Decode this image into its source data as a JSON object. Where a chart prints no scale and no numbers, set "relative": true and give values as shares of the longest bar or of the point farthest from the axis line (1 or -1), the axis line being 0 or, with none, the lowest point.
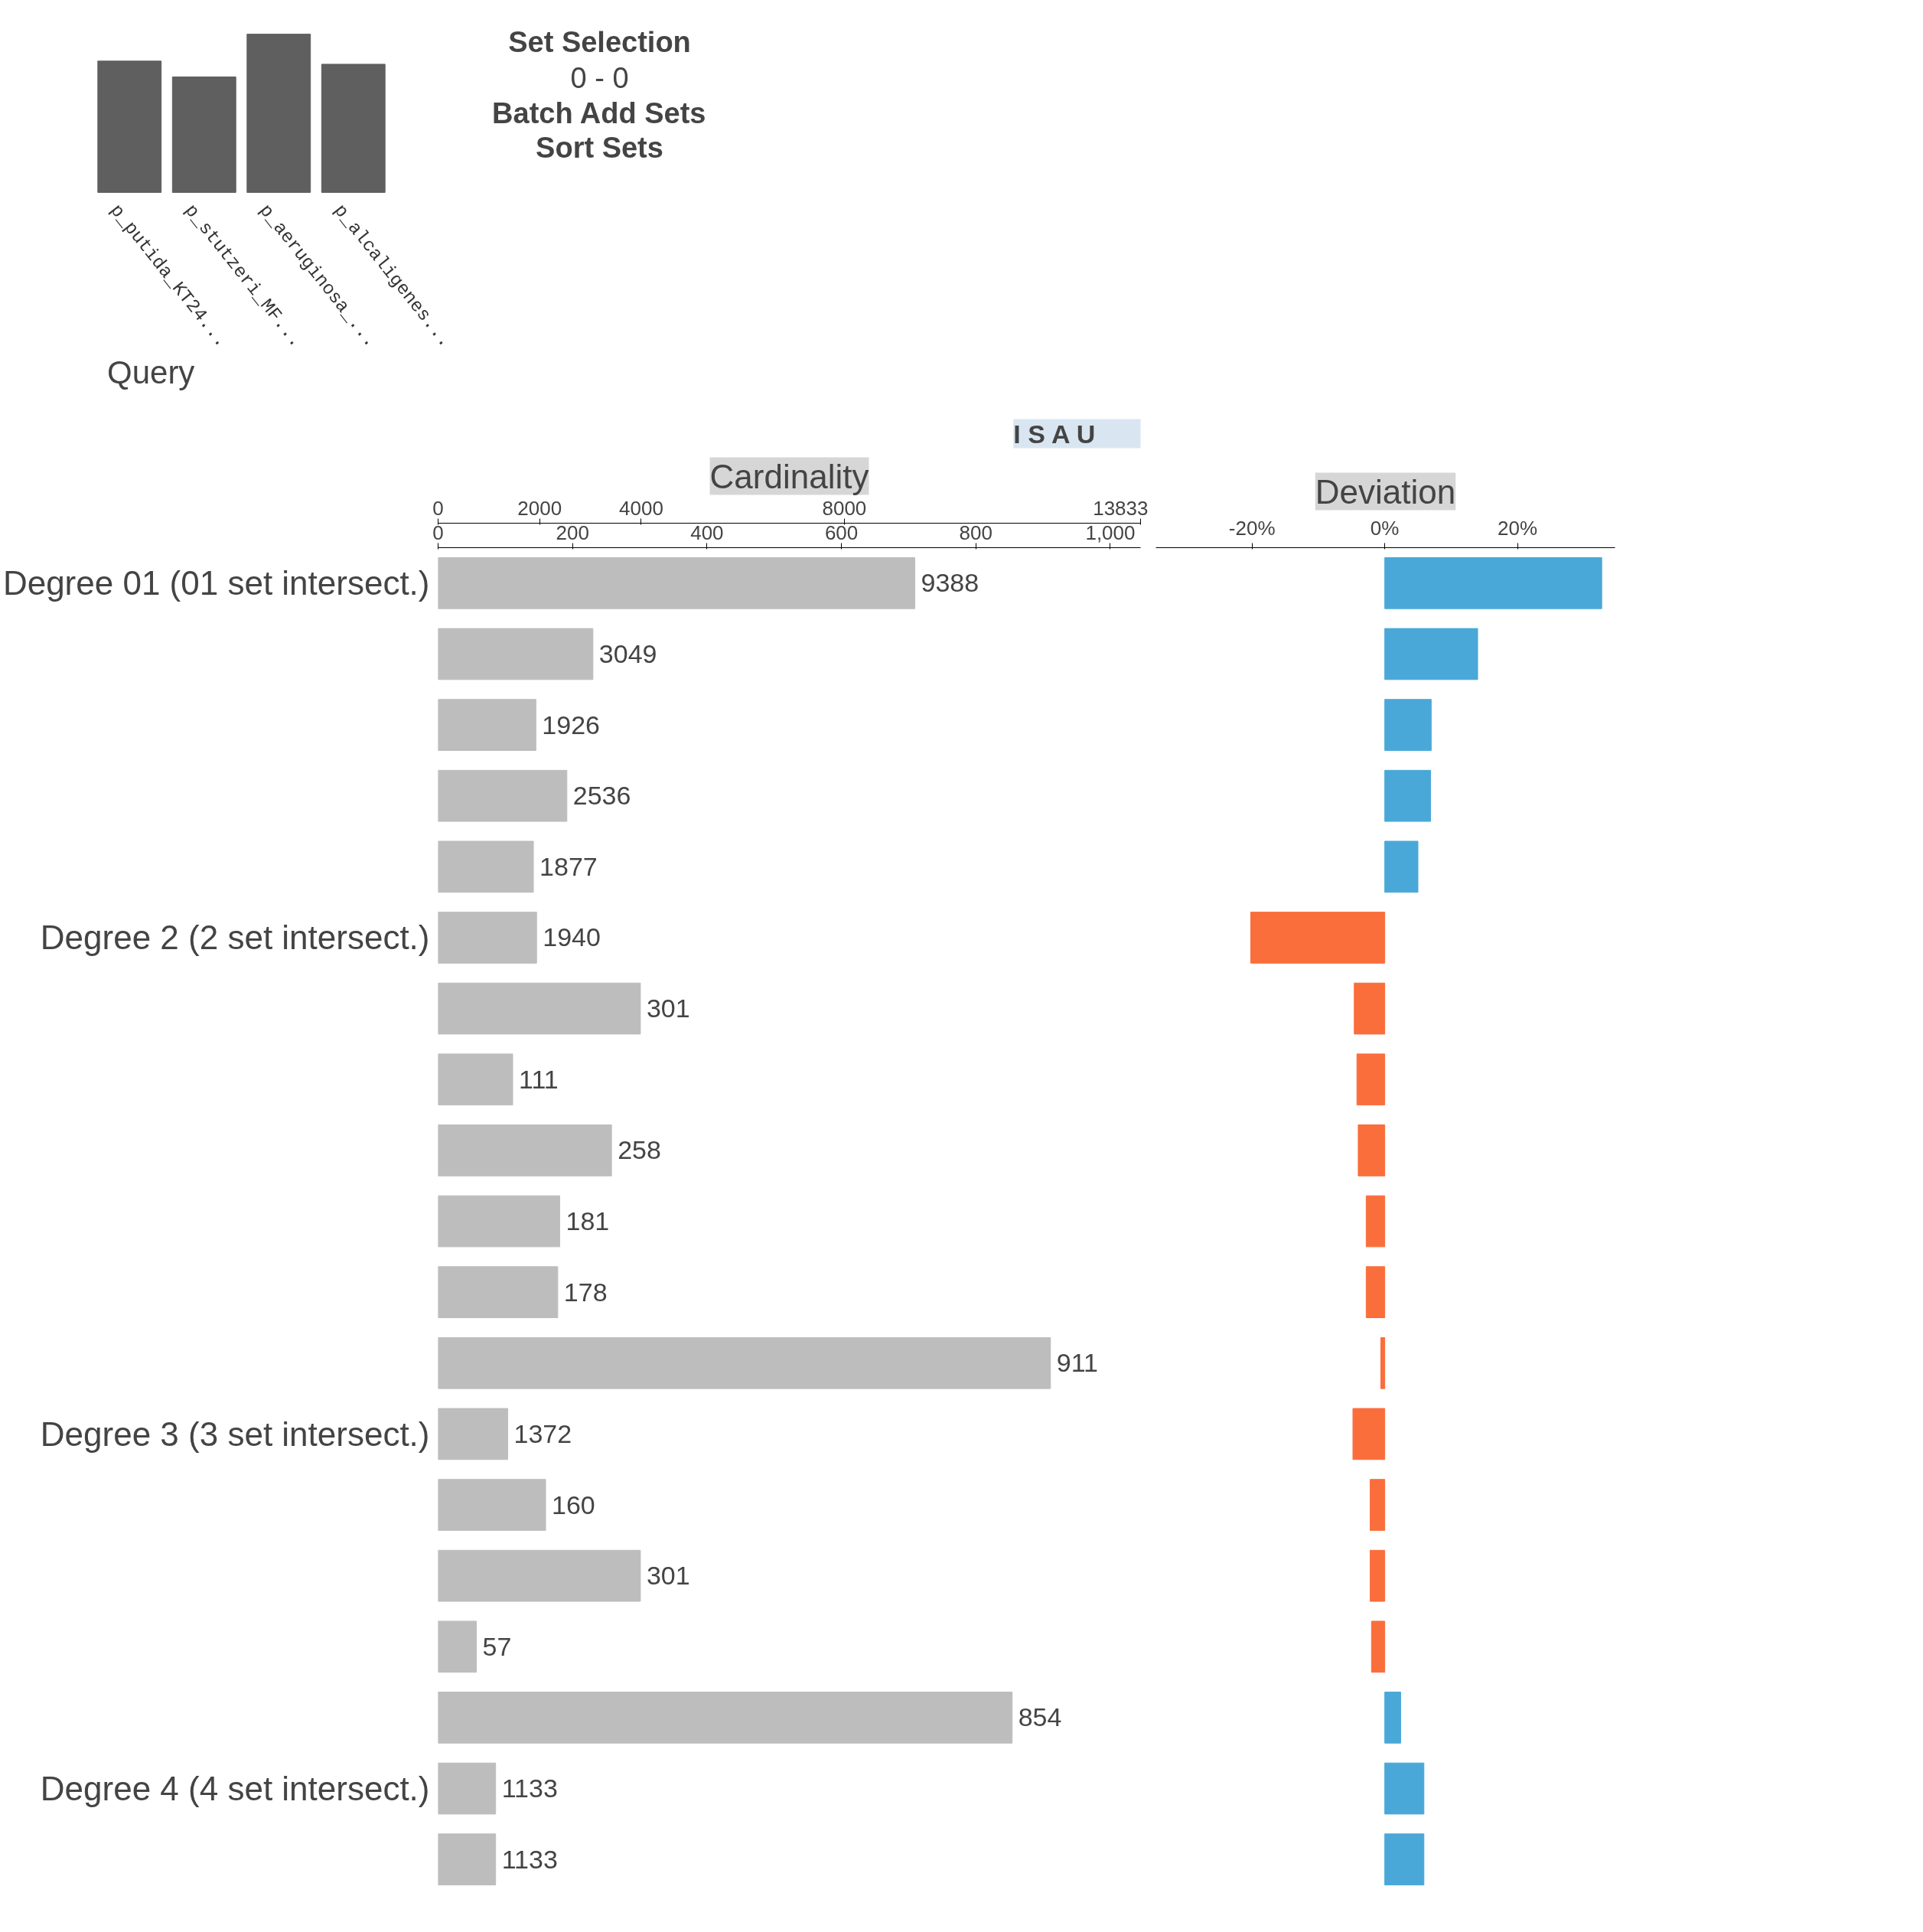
{
  "chart_data": [
    {
      "type": "bar",
      "relative": true,
      "categories": [
        "p_putida_KT24...",
        "p_stutzeri_MF...",
        "p_aeruginosa_...",
        "p_alcaligenes..."
      ],
      "values": [
        0.83,
        0.73,
        1.0,
        0.81
      ],
      "color": "#5f5f5f",
      "annotations": [
        "Set Selection",
        "0 - 0",
        "Batch Add Sets",
        "Sort Sets",
        "Query"
      ]
    },
    {
      "type": "bar",
      "orientation": "horizontal",
      "title": "Cardinality",
      "categories": [
        "Degree 01 (01 set intersect.)",
        null,
        null,
        null,
        null,
        "Degree 2 (2 set intersect.)",
        null,
        null,
        null,
        null,
        null,
        null,
        "Degree 3 (3 set intersect.)",
        null,
        null,
        null,
        null,
        "Degree 4 (4 set intersect.)",
        null
      ],
      "series": [
        {
          "color": "#bdbdbd",
          "values": [
            null,
            null,
            null,
            null,
            null,
            null,
            301,
            111,
            258,
            181,
            178,
            911,
            null,
            160,
            301,
            57,
            854,
            null,
            null
          ]
        },
        {
          "color": "#bdbdbd",
          "axis": "x2",
          "values": [
            9388,
            3049,
            1926,
            2536,
            1877,
            1940,
            null,
            null,
            null,
            null,
            null,
            null,
            1372,
            null,
            null,
            null,
            null,
            1133,
            1133
          ]
        }
      ],
      "data_labels": true,
      "xlim": [
        0,
        1045
      ],
      "xticks": [
        0,
        200,
        400,
        600,
        800,
        {
          "value": 1000,
          "label": "1,000"
        }
      ],
      "x2lim": [
        0,
        13833
      ],
      "x2ticks": [
        0,
        2000,
        4000,
        8000,
        13833
      ],
      "annotations": [
        "I",
        "S",
        "A",
        "U"
      ]
    },
    {
      "type": "bar",
      "orientation": "horizontal",
      "title": "Deviation",
      "categories": [
        null,
        null,
        null,
        null,
        null,
        null,
        null,
        null,
        null,
        null,
        null,
        null,
        null,
        null,
        null,
        null,
        null,
        null,
        null
      ],
      "values": [
        32.7,
        14,
        7,
        6.9,
        5,
        -20.2,
        -4.6,
        -4.2,
        -4,
        -2.8,
        -2.8,
        -0.6,
        -4.8,
        -2.2,
        -2.2,
        -2,
        2.4,
        5.9,
        5.9
      ],
      "colors": [
        "#4aa8d8",
        "#4aa8d8",
        "#4aa8d8",
        "#4aa8d8",
        "#4aa8d8",
        "#fa6e3c",
        "#fa6e3c",
        "#fa6e3c",
        "#fa6e3c",
        "#fa6e3c",
        "#fa6e3c",
        "#fa6e3c",
        "#fa6e3c",
        "#fa6e3c",
        "#fa6e3c",
        "#fa6e3c",
        "#4aa8d8",
        "#4aa8d8",
        "#4aa8d8"
      ],
      "xlim": [
        -34.5,
        34.7
      ],
      "xticks": [
        {
          "value": -20,
          "label": "-20%"
        },
        {
          "value": 0,
          "label": "0%"
        },
        {
          "value": 20,
          "label": "20%"
        }
      ],
      "tick_labels": "x"
    }
  ]
}
